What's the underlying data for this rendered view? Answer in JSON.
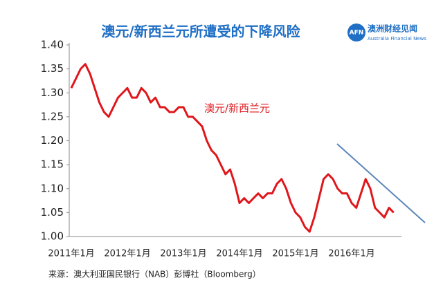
{
  "chart_data": {
    "type": "line",
    "title": "澳元/新西兰元所遭受的下降风险",
    "brand": {
      "mark": "AFN",
      "name": "澳洲财经见闻",
      "subname": "Australia Financial News"
    },
    "source": "来源：澳大利亚国民银行（NAB）彭博社（Bloomberg）",
    "categories": [
      "2011年1月",
      null,
      null,
      null,
      null,
      null,
      null,
      null,
      null,
      null,
      null,
      null,
      "2012年1月",
      null,
      null,
      null,
      null,
      null,
      null,
      null,
      null,
      null,
      null,
      null,
      "2013年1月",
      null,
      null,
      null,
      null,
      null,
      null,
      null,
      null,
      null,
      null,
      null,
      "2014年1月",
      null,
      null,
      null,
      null,
      null,
      null,
      null,
      null,
      null,
      null,
      null,
      "2015年1月",
      null,
      null,
      null,
      null,
      null,
      null,
      null,
      null,
      null,
      null,
      null,
      "2016年1月",
      null,
      null,
      null,
      null,
      null,
      null,
      null,
      null,
      null
    ],
    "series": [
      {
        "name": "澳元/新西兰元",
        "color": "#e0161b",
        "values": [
          1.31,
          1.33,
          1.35,
          1.36,
          1.34,
          1.31,
          1.28,
          1.26,
          1.25,
          1.27,
          1.29,
          1.3,
          1.31,
          1.29,
          1.29,
          1.31,
          1.3,
          1.28,
          1.29,
          1.27,
          1.27,
          1.26,
          1.26,
          1.27,
          1.27,
          1.25,
          1.25,
          1.24,
          1.23,
          1.2,
          1.18,
          1.17,
          1.15,
          1.13,
          1.14,
          1.11,
          1.07,
          1.08,
          1.07,
          1.08,
          1.09,
          1.08,
          1.09,
          1.09,
          1.11,
          1.12,
          1.1,
          1.07,
          1.05,
          1.04,
          1.02,
          1.01,
          1.04,
          1.08,
          1.12,
          1.13,
          1.12,
          1.1,
          1.09,
          1.09,
          1.07,
          1.06,
          1.09,
          1.12,
          1.1,
          1.06,
          1.05,
          1.04,
          1.06,
          1.05
        ]
      }
    ],
    "ylim": [
      1.0,
      1.4
    ],
    "yticks": [
      {
        "value": 1.0,
        "label": "1.00"
      },
      {
        "value": 1.05,
        "label": "1.05"
      },
      {
        "value": 1.1,
        "label": "1.10"
      },
      {
        "value": 1.15,
        "label": "1.15"
      },
      {
        "value": 1.2,
        "label": "1.20"
      },
      {
        "value": 1.25,
        "label": "1.25"
      },
      {
        "value": 1.3,
        "label": "1.30"
      },
      {
        "value": 1.35,
        "label": "1.35"
      },
      {
        "value": 1.4,
        "label": "1.40"
      }
    ],
    "grid": false
  }
}
